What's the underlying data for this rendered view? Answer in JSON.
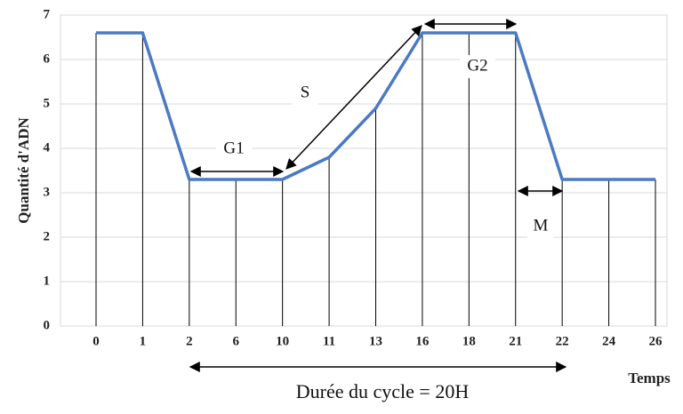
{
  "chart_data": {
    "type": "line",
    "ylabel": "Quantité d'ADN",
    "xlabel": "Temps",
    "categories": [
      "0",
      "1",
      "2",
      "6",
      "10",
      "11",
      "13",
      "16",
      "18",
      "21",
      "22",
      "24",
      "26"
    ],
    "values": [
      6.6,
      6.6,
      3.3,
      3.3,
      3.3,
      3.8,
      4.9,
      6.6,
      6.6,
      6.6,
      3.3,
      3.3,
      3.3
    ],
    "color": "#4a7ac4",
    "ylim": [
      0,
      7
    ],
    "yticks": [
      0,
      1,
      2,
      3,
      4,
      5,
      6,
      7
    ],
    "grid": true,
    "annotations": [
      "G1",
      "S",
      "G2",
      "M",
      "Durée du cycle = 20H"
    ]
  }
}
